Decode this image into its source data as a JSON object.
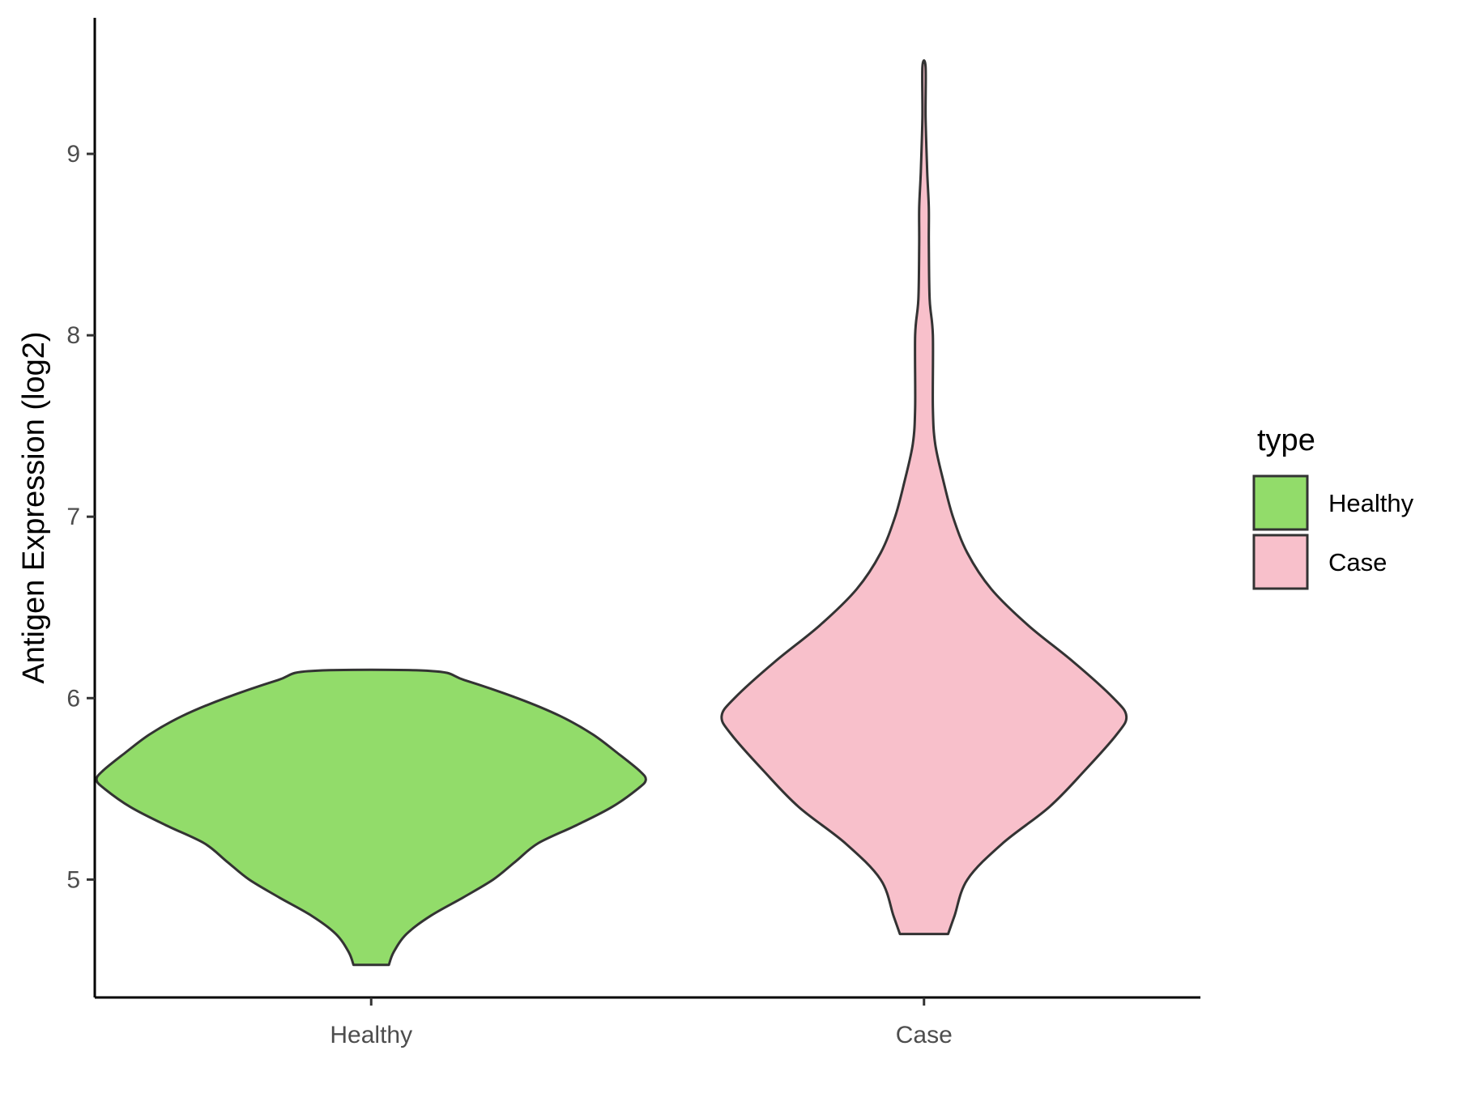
{
  "chart_data": {
    "type": "violin",
    "ylabel": "Antigen Expression (log2)",
    "xlabel": "",
    "ylim": [
      4.35,
      9.75
    ],
    "yticks": [
      5,
      6,
      7,
      8,
      9
    ],
    "categories": [
      "Healthy",
      "Case"
    ],
    "legend": {
      "title": "type",
      "position": "right",
      "entries": [
        {
          "label": "Healthy",
          "color": "#92DC6A"
        },
        {
          "label": "Case",
          "color": "#F8C0CB"
        }
      ]
    },
    "grid": false,
    "series": [
      {
        "name": "Healthy",
        "color": "#92DC6A",
        "min": 4.53,
        "max": 6.15,
        "profile": [
          [
            4.53,
            0.11
          ],
          [
            4.6,
            0.14
          ],
          [
            4.7,
            0.22
          ],
          [
            4.8,
            0.37
          ],
          [
            4.9,
            0.57
          ],
          [
            5.0,
            0.76
          ],
          [
            5.1,
            0.9
          ],
          [
            5.2,
            1.04
          ],
          [
            5.3,
            1.28
          ],
          [
            5.4,
            1.5
          ],
          [
            5.5,
            1.66
          ],
          [
            5.55,
            1.71
          ],
          [
            5.6,
            1.67
          ],
          [
            5.7,
            1.53
          ],
          [
            5.8,
            1.38
          ],
          [
            5.9,
            1.18
          ],
          [
            6.0,
            0.91
          ],
          [
            6.1,
            0.58
          ],
          [
            6.15,
            0.37
          ]
        ]
      },
      {
        "name": "Case",
        "color": "#F8C0CB",
        "min": 4.7,
        "max": 9.48,
        "profile": [
          [
            4.7,
            0.15
          ],
          [
            4.8,
            0.19
          ],
          [
            5.0,
            0.27
          ],
          [
            5.2,
            0.49
          ],
          [
            5.4,
            0.78
          ],
          [
            5.6,
            1.0
          ],
          [
            5.8,
            1.2
          ],
          [
            5.9,
            1.26
          ],
          [
            6.0,
            1.18
          ],
          [
            6.2,
            0.93
          ],
          [
            6.4,
            0.65
          ],
          [
            6.6,
            0.42
          ],
          [
            6.8,
            0.27
          ],
          [
            7.0,
            0.18
          ],
          [
            7.2,
            0.12
          ],
          [
            7.4,
            0.07
          ],
          [
            7.6,
            0.055
          ],
          [
            8.0,
            0.055
          ],
          [
            8.2,
            0.035
          ],
          [
            8.5,
            0.03
          ],
          [
            8.7,
            0.03
          ],
          [
            8.9,
            0.02
          ],
          [
            9.2,
            0.01
          ],
          [
            9.48,
            0.01
          ]
        ]
      }
    ]
  }
}
